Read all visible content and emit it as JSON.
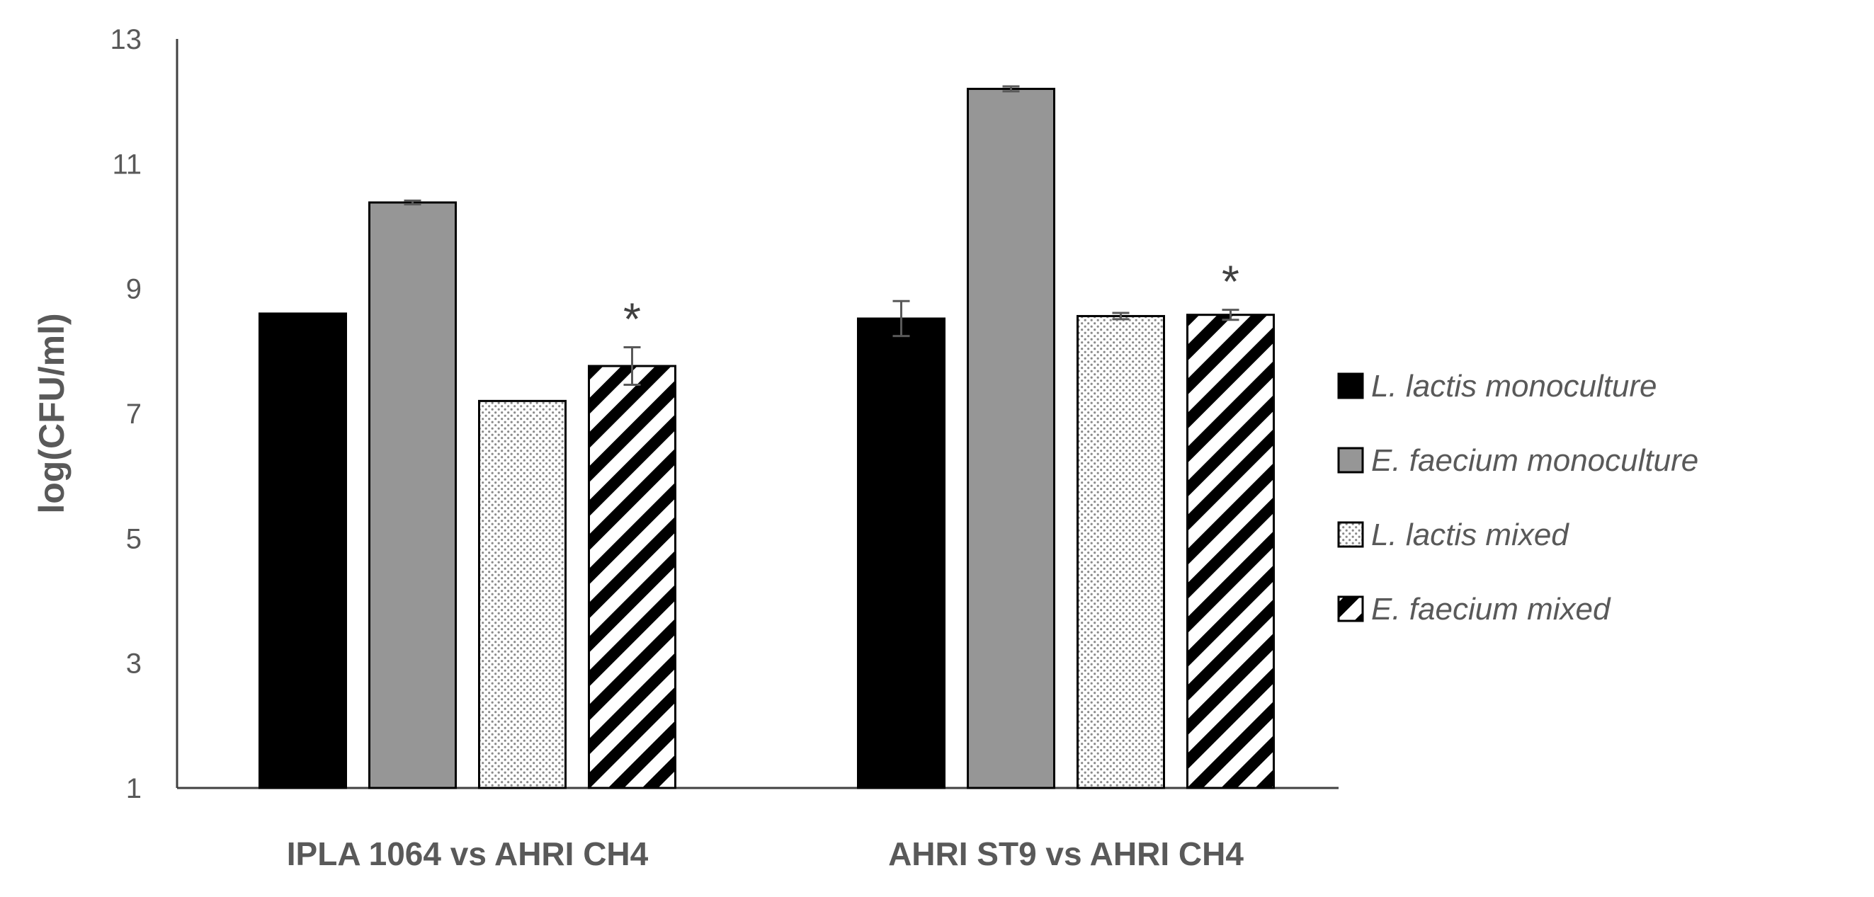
{
  "chart_data": {
    "type": "bar",
    "title": "",
    "xlabel": "",
    "ylabel": "log(CFU/ml)",
    "ylim": [
      1,
      13
    ],
    "yticks": [
      1,
      3,
      5,
      7,
      9,
      11,
      13
    ],
    "grid": false,
    "legend_position": "right",
    "categories": [
      "IPLA 1064 vs AHRI CH4",
      "AHRI ST9 vs AHRI CH4"
    ],
    "series": [
      {
        "name": "L. lactis monoculture",
        "values": [
          8.6,
          8.52
        ],
        "errors": [
          0.0,
          0.28
        ],
        "fill": "solid",
        "color": "#000000"
      },
      {
        "name": "E. faecium monoculture",
        "values": [
          10.38,
          12.2
        ],
        "errors": [
          0.03,
          0.04
        ],
        "fill": "solid",
        "color": "#969696"
      },
      {
        "name": "L. lactis mixed",
        "values": [
          7.2,
          8.56
        ],
        "errors": [
          0.0,
          0.05
        ],
        "fill": "dots",
        "color": "#ffffff"
      },
      {
        "name": "E. faecium mixed",
        "values": [
          7.76,
          8.58
        ],
        "errors": [
          0.3,
          0.08
        ],
        "fill": "stripes",
        "color": "#000000"
      }
    ],
    "annotations": [
      {
        "text": "*",
        "category_index": 0,
        "series_index": 3
      },
      {
        "text": "*",
        "category_index": 1,
        "series_index": 3
      }
    ]
  }
}
